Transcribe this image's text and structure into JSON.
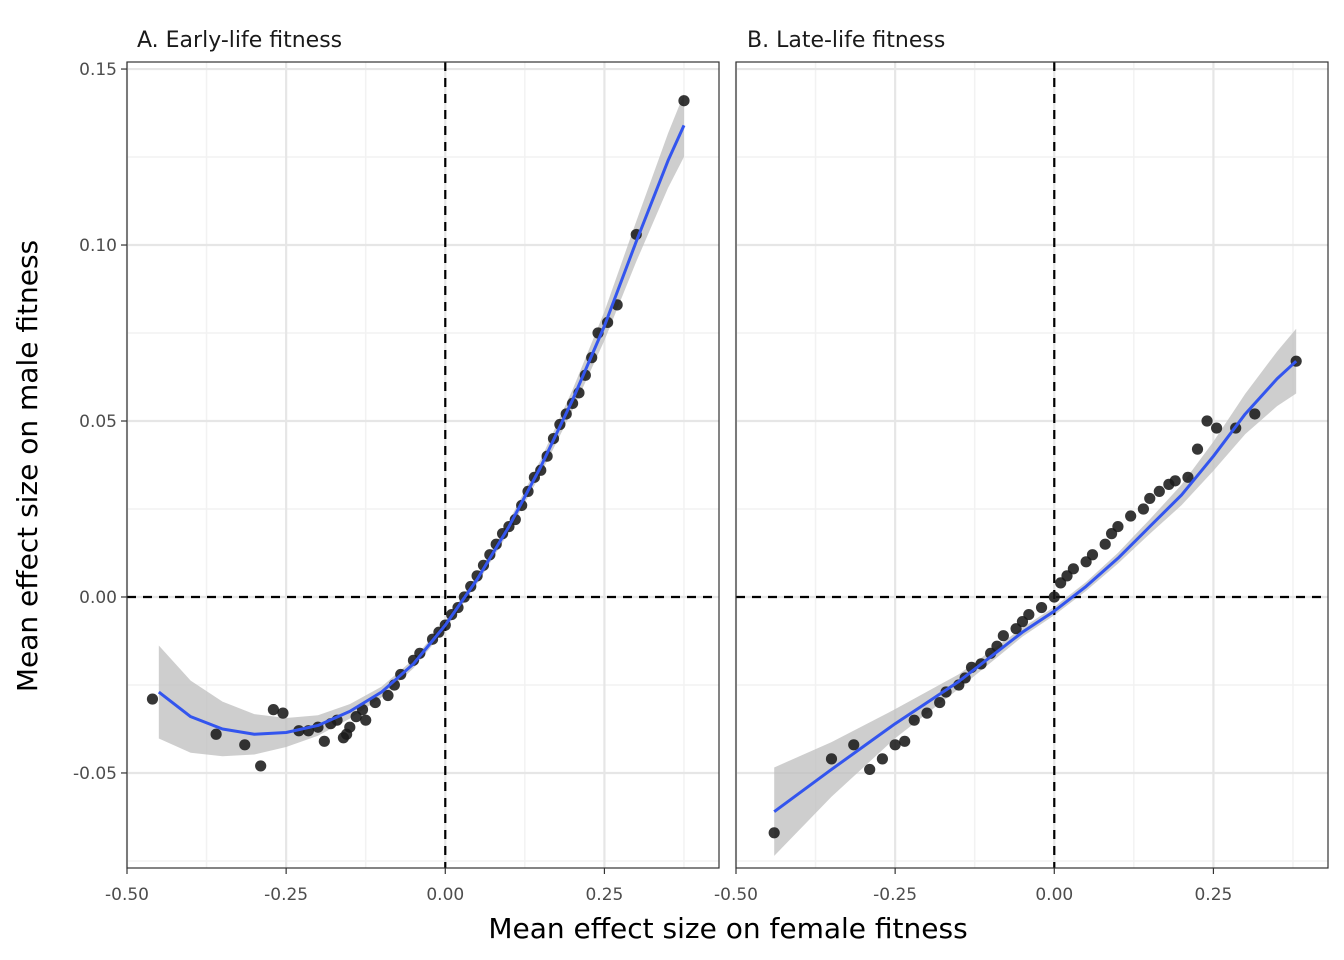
{
  "figure": {
    "xlabel": "Mean effect size on female fitness",
    "ylabel": "Mean effect size on male fitness"
  },
  "colors": {
    "points": "#1a1a1a",
    "fit_line": "#3355ee",
    "ribbon": "#bdbdbd",
    "grid_major": "#e6e6e6",
    "grid_minor": "#f2f2f2",
    "reference_line": "#000000"
  },
  "chart_data": [
    {
      "type": "scatter",
      "title": "A. Early-life fitness",
      "x_tick_labels": [
        "-0.50",
        "-0.25",
        "0.00",
        "0.25"
      ],
      "x_ticks": [
        -0.5,
        -0.25,
        0.0,
        0.25
      ],
      "y_tick_labels": [
        "0.15",
        "0.10",
        "0.05",
        "0.00",
        "-0.05"
      ],
      "y_ticks": [
        0.15,
        0.1,
        0.05,
        0.0,
        -0.05
      ],
      "xlim": [
        -0.5,
        0.43
      ],
      "ylim": [
        -0.077,
        0.152
      ],
      "grid": true,
      "reference_lines": {
        "x": 0,
        "y": 0
      },
      "points": [
        [
          -0.46,
          -0.029
        ],
        [
          -0.36,
          -0.039
        ],
        [
          -0.315,
          -0.042
        ],
        [
          -0.29,
          -0.048
        ],
        [
          -0.27,
          -0.032
        ],
        [
          -0.255,
          -0.033
        ],
        [
          -0.23,
          -0.038
        ],
        [
          -0.215,
          -0.038
        ],
        [
          -0.2,
          -0.037
        ],
        [
          -0.19,
          -0.041
        ],
        [
          -0.18,
          -0.036
        ],
        [
          -0.17,
          -0.035
        ],
        [
          -0.16,
          -0.04
        ],
        [
          -0.155,
          -0.039
        ],
        [
          -0.15,
          -0.037
        ],
        [
          -0.14,
          -0.034
        ],
        [
          -0.13,
          -0.032
        ],
        [
          -0.125,
          -0.035
        ],
        [
          -0.11,
          -0.03
        ],
        [
          -0.09,
          -0.028
        ],
        [
          -0.08,
          -0.025
        ],
        [
          -0.07,
          -0.022
        ],
        [
          -0.05,
          -0.018
        ],
        [
          -0.04,
          -0.016
        ],
        [
          -0.02,
          -0.012
        ],
        [
          -0.01,
          -0.01
        ],
        [
          0.0,
          -0.008
        ],
        [
          0.01,
          -0.005
        ],
        [
          0.02,
          -0.003
        ],
        [
          0.03,
          0.0
        ],
        [
          0.04,
          0.003
        ],
        [
          0.05,
          0.006
        ],
        [
          0.06,
          0.009
        ],
        [
          0.07,
          0.012
        ],
        [
          0.08,
          0.015
        ],
        [
          0.09,
          0.018
        ],
        [
          0.1,
          0.02
        ],
        [
          0.11,
          0.022
        ],
        [
          0.12,
          0.026
        ],
        [
          0.13,
          0.03
        ],
        [
          0.14,
          0.034
        ],
        [
          0.15,
          0.036
        ],
        [
          0.16,
          0.04
        ],
        [
          0.17,
          0.045
        ],
        [
          0.18,
          0.049
        ],
        [
          0.19,
          0.052
        ],
        [
          0.2,
          0.055
        ],
        [
          0.21,
          0.058
        ],
        [
          0.22,
          0.063
        ],
        [
          0.23,
          0.068
        ],
        [
          0.24,
          0.075
        ],
        [
          0.255,
          0.078
        ],
        [
          0.27,
          0.083
        ],
        [
          0.3,
          0.103
        ],
        [
          0.375,
          0.141
        ]
      ],
      "fit": [
        [
          -0.45,
          -0.027
        ],
        [
          -0.4,
          -0.034
        ],
        [
          -0.35,
          -0.0375
        ],
        [
          -0.3,
          -0.039
        ],
        [
          -0.25,
          -0.0385
        ],
        [
          -0.2,
          -0.0365
        ],
        [
          -0.15,
          -0.0325
        ],
        [
          -0.1,
          -0.027
        ],
        [
          -0.05,
          -0.019
        ],
        [
          0.0,
          -0.008
        ],
        [
          0.05,
          0.005
        ],
        [
          0.1,
          0.02
        ],
        [
          0.15,
          0.037
        ],
        [
          0.2,
          0.056
        ],
        [
          0.25,
          0.077
        ],
        [
          0.3,
          0.101
        ],
        [
          0.35,
          0.124
        ],
        [
          0.375,
          0.134
        ]
      ]
    },
    {
      "type": "scatter",
      "title": "B. Late-life fitness",
      "x_tick_labels": [
        "-0.50",
        "-0.25",
        "0.00",
        "0.25"
      ],
      "x_ticks": [
        -0.5,
        -0.25,
        0.0,
        0.25
      ],
      "xlim": [
        -0.5,
        0.43
      ],
      "ylim": [
        -0.077,
        0.152
      ],
      "grid": true,
      "reference_lines": {
        "x": 0,
        "y": 0
      },
      "points": [
        [
          -0.44,
          -0.067
        ],
        [
          -0.35,
          -0.046
        ],
        [
          -0.315,
          -0.042
        ],
        [
          -0.29,
          -0.049
        ],
        [
          -0.27,
          -0.046
        ],
        [
          -0.25,
          -0.042
        ],
        [
          -0.235,
          -0.041
        ],
        [
          -0.22,
          -0.035
        ],
        [
          -0.2,
          -0.033
        ],
        [
          -0.18,
          -0.03
        ],
        [
          -0.17,
          -0.027
        ],
        [
          -0.15,
          -0.025
        ],
        [
          -0.14,
          -0.023
        ],
        [
          -0.13,
          -0.02
        ],
        [
          -0.115,
          -0.019
        ],
        [
          -0.1,
          -0.016
        ],
        [
          -0.09,
          -0.014
        ],
        [
          -0.08,
          -0.011
        ],
        [
          -0.06,
          -0.009
        ],
        [
          -0.05,
          -0.007
        ],
        [
          -0.04,
          -0.005
        ],
        [
          -0.02,
          -0.003
        ],
        [
          0.0,
          0.0
        ],
        [
          0.01,
          0.004
        ],
        [
          0.02,
          0.006
        ],
        [
          0.03,
          0.008
        ],
        [
          0.05,
          0.01
        ],
        [
          0.06,
          0.012
        ],
        [
          0.08,
          0.015
        ],
        [
          0.09,
          0.018
        ],
        [
          0.1,
          0.02
        ],
        [
          0.12,
          0.023
        ],
        [
          0.14,
          0.025
        ],
        [
          0.15,
          0.028
        ],
        [
          0.165,
          0.03
        ],
        [
          0.18,
          0.032
        ],
        [
          0.19,
          0.033
        ],
        [
          0.21,
          0.034
        ],
        [
          0.225,
          0.042
        ],
        [
          0.24,
          0.05
        ],
        [
          0.255,
          0.048
        ],
        [
          0.285,
          0.048
        ],
        [
          0.315,
          0.052
        ],
        [
          0.38,
          0.067
        ]
      ],
      "fit": [
        [
          -0.44,
          -0.061
        ],
        [
          -0.35,
          -0.049
        ],
        [
          -0.25,
          -0.036
        ],
        [
          -0.15,
          -0.024
        ],
        [
          -0.05,
          -0.01
        ],
        [
          0.0,
          -0.004
        ],
        [
          0.05,
          0.003
        ],
        [
          0.1,
          0.011
        ],
        [
          0.15,
          0.02
        ],
        [
          0.2,
          0.029
        ],
        [
          0.25,
          0.04
        ],
        [
          0.3,
          0.052
        ],
        [
          0.35,
          0.062
        ],
        [
          0.38,
          0.067
        ]
      ]
    }
  ]
}
